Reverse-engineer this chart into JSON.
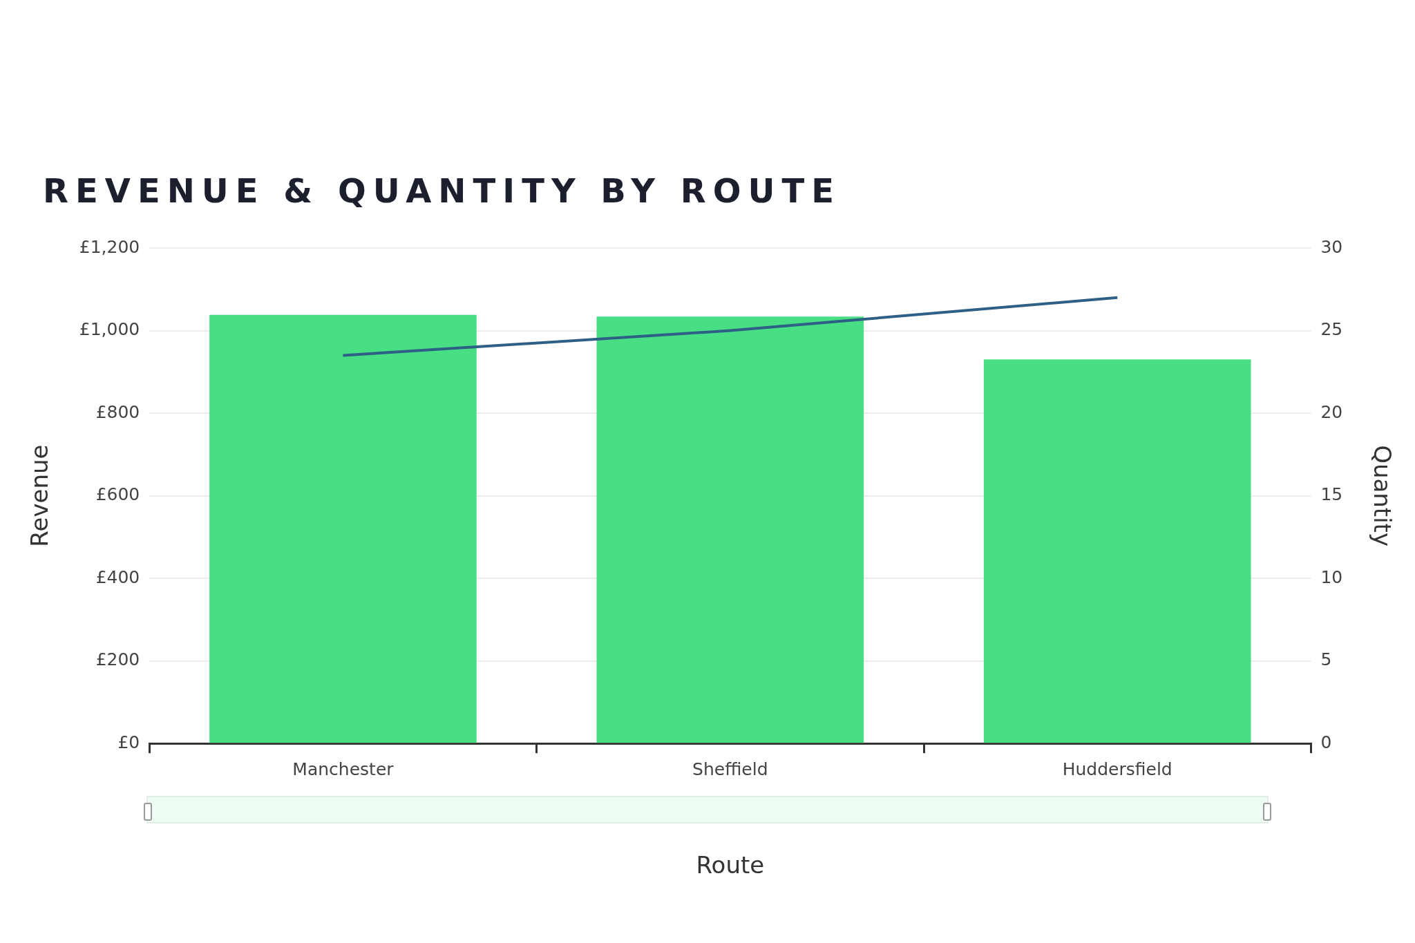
{
  "chart_data": {
    "type": "bar",
    "title": "REVENUE & QUANTITY BY ROUTE",
    "xlabel": "Route",
    "ylabel": "Revenue",
    "y2label": "Quantity",
    "categories": [
      "Manchester",
      "Sheffield",
      "Huddersfield"
    ],
    "series": [
      {
        "color": "#48de84",
        "values": [
          1038,
          1034,
          930
        ]
      },
      {
        "type": "line",
        "axis": "y2",
        "color": "#2e5f85",
        "values": [
          23.5,
          25,
          27
        ]
      }
    ],
    "ylim": [
      0,
      1200
    ],
    "yticks": [
      {
        "value": 0,
        "label": "£0"
      },
      {
        "value": 200,
        "label": "£200"
      },
      {
        "value": 400,
        "label": "£400"
      },
      {
        "value": 600,
        "label": "£600"
      },
      {
        "value": 800,
        "label": "£800"
      },
      {
        "value": 1000,
        "label": "£1,000"
      },
      {
        "value": 1200,
        "label": "£1,200"
      }
    ],
    "y2lim": [
      0,
      30
    ],
    "y2ticks": [
      0,
      5,
      10,
      15,
      20,
      25,
      30
    ],
    "grid": "y",
    "marker": "none"
  }
}
